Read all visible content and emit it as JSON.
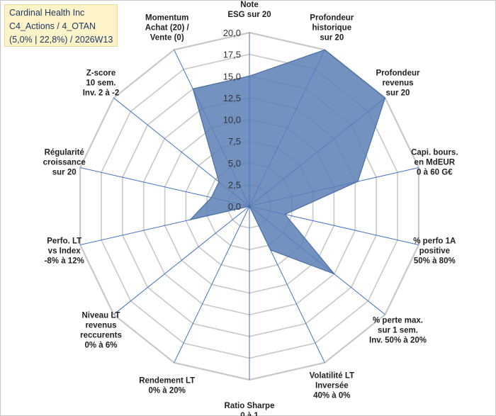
{
  "title_box": {
    "line1": "Cardinal Health Inc",
    "line2": "C4_Actions / 4_OTAN",
    "line3": "(5,0% | 22,8%) / 2026W13"
  },
  "colors": {
    "fill": "#5b7fb5",
    "fill_opacity": "0.85",
    "stroke": "#4a6fa5",
    "grid": "#c8c8c8",
    "spoke": "#4472c4"
  },
  "chart_data": {
    "type": "radar",
    "title": "Cardinal Health Inc",
    "rmin": 0,
    "rmax": 20,
    "tick_step": 2.5,
    "tick_labels": [
      "0,0",
      "2,5",
      "5,0",
      "7,5",
      "10,0",
      "12,5",
      "15,0",
      "17,5",
      "20,0"
    ],
    "axes": [
      {
        "label": [
          "Note",
          "ESG sur 20"
        ],
        "value": 15.0
      },
      {
        "label": [
          "Profondeur",
          "historique",
          "sur 20"
        ],
        "value": 20.0
      },
      {
        "label": [
          "Profondeur",
          "revenus",
          "sur 20"
        ],
        "value": 20.0
      },
      {
        "label": [
          "Capi. bours.",
          "en MdEUR",
          "0 à 60 G€"
        ],
        "value": 12.8
      },
      {
        "label": [
          "% perfo 1A",
          "positive",
          "50% à 80%"
        ],
        "value": 4.2
      },
      {
        "label": [
          "% perte max.",
          "sur 1 sem.",
          "Inv. 50% à 20%"
        ],
        "value": 12.5
      },
      {
        "label": [
          "Volatilité LT",
          "Inversée",
          "40% à 0%"
        ],
        "value": 5.6
      },
      {
        "label": [
          "Ratio Sharpe",
          "0 à 1"
        ],
        "value": 0.0
      },
      {
        "label": [
          "Rendement LT",
          "0% à 20%"
        ],
        "value": 0.0
      },
      {
        "label": [
          "Niveau LT",
          "revenus",
          "reccurents",
          "0% à 6%"
        ],
        "value": 0.0
      },
      {
        "label": [
          "Perfo. LT",
          "vs Index",
          "-8% à 12%"
        ],
        "value": 7.0
      },
      {
        "label": [
          "Régularité",
          "croissance",
          "sur 20"
        ],
        "value": 4.5
      },
      {
        "label": [
          "Z-score",
          "10 sem.",
          "Inv. 2 à -2"
        ],
        "value": 4.5
      },
      {
        "label": [
          "Momentum",
          "Achat (20) /",
          "Vente (0)"
        ],
        "value": 15.0
      }
    ]
  }
}
